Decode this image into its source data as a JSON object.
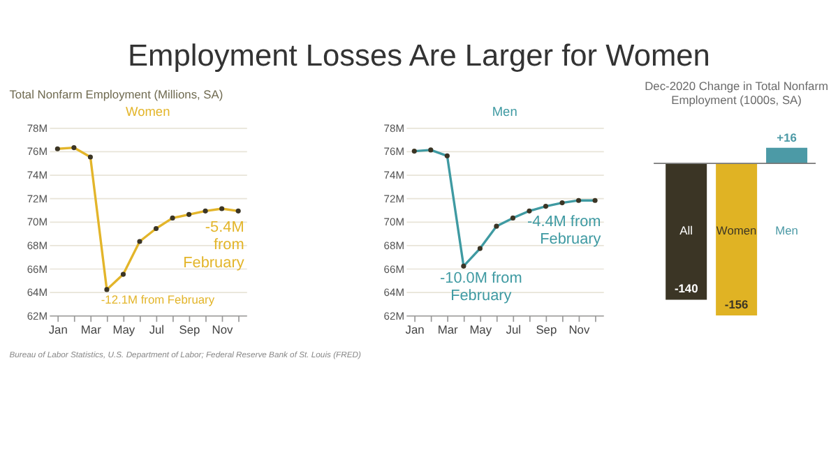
{
  "chart_data": [
    {
      "type": "line",
      "title": "Employment Losses Are Larger for Women",
      "subtitle": "Total Nonfarm Employment (Millions, SA)",
      "categories": [
        "Jan",
        null,
        "Mar",
        null,
        "May",
        null,
        "Jul",
        null,
        "Sep",
        null,
        "Nov",
        null
      ],
      "series": [
        {
          "name": "Women",
          "color": "#e3b52a",
          "values": [
            76.2,
            76.3,
            75.5,
            64.2,
            65.5,
            68.3,
            69.4,
            70.3,
            70.6,
            70.9,
            71.1,
            70.9
          ]
        }
      ],
      "ylim": [
        62,
        78
      ],
      "yticks": [
        {
          "value": 62,
          "label": "62M"
        },
        {
          "value": 64,
          "label": "64M"
        },
        {
          "value": 66,
          "label": "66M"
        },
        {
          "value": 68,
          "label": "68M"
        },
        {
          "value": 70,
          "label": "70M"
        },
        {
          "value": 72,
          "label": "72M"
        },
        {
          "value": 74,
          "label": "74M"
        },
        {
          "value": 76,
          "label": "76M"
        },
        {
          "value": 78,
          "label": "78M"
        }
      ],
      "grid": "y",
      "marker": "circle",
      "annotations": [
        "-12.1M from February",
        "-5.4M from February",
        "Bureau of Labor Statistics, U.S. Department of Labor; Federal Reserve Bank of St. Louis (FRED)"
      ]
    },
    {
      "type": "line",
      "categories": [
        "Jan",
        null,
        "Mar",
        null,
        "May",
        null,
        "Jul",
        null,
        "Sep",
        null,
        "Nov",
        null
      ],
      "series": [
        {
          "name": "Men",
          "color": "#3f9aa2",
          "values": [
            76.0,
            76.1,
            75.6,
            66.2,
            67.7,
            69.6,
            70.3,
            70.9,
            71.3,
            71.6,
            71.8,
            71.8
          ]
        }
      ],
      "ylim": [
        62,
        78
      ],
      "yticks": [
        {
          "value": 62,
          "label": "62M"
        },
        {
          "value": 64,
          "label": "64M"
        },
        {
          "value": 66,
          "label": "66M"
        },
        {
          "value": 68,
          "label": "68M"
        },
        {
          "value": 70,
          "label": "70M"
        },
        {
          "value": 72,
          "label": "72M"
        },
        {
          "value": 74,
          "label": "74M"
        },
        {
          "value": 76,
          "label": "76M"
        },
        {
          "value": 78,
          "label": "78M"
        }
      ],
      "grid": "y",
      "marker": "circle",
      "annotations": [
        "-10.0M from February",
        "-4.4M from February"
      ]
    },
    {
      "type": "bar",
      "title": "Dec-2020 Change in Total Nonfarm Employment (1000s, SA)",
      "categories": [
        "All",
        "Women",
        "Men"
      ],
      "values": [
        -140,
        -156,
        16
      ],
      "colors": [
        "#3b3525",
        "#e0b324",
        "#4c9aa6"
      ],
      "value_labels": [
        "-140",
        "-156",
        "+16"
      ]
    }
  ]
}
